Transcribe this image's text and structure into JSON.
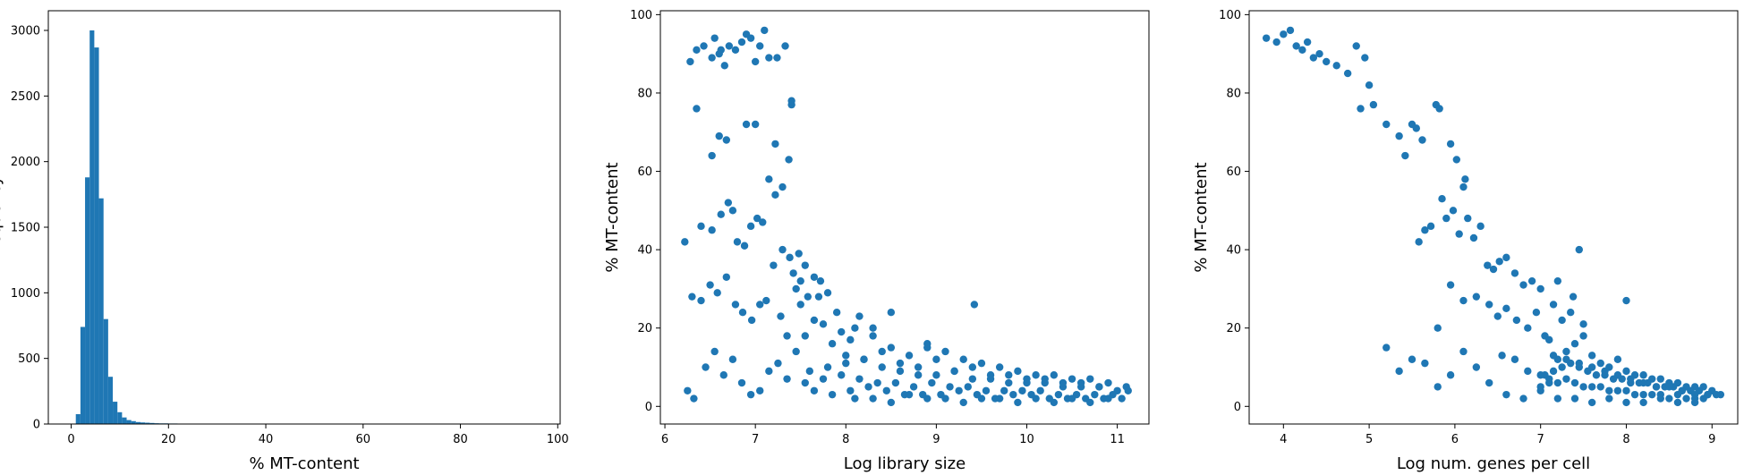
{
  "colors": {
    "series": "#1f77b4",
    "axis": "#000000",
    "background": "#ffffff"
  },
  "chart_data": [
    {
      "type": "bar",
      "subtype": "histogram",
      "xlabel": "% MT-content",
      "ylabel": "Frequency",
      "xlim": [
        -4.7,
        100.5
      ],
      "ylim": [
        0,
        3150
      ],
      "xticks": [
        0,
        20,
        40,
        60,
        80,
        100
      ],
      "yticks": [
        0,
        500,
        1000,
        1500,
        2000,
        2500,
        3000
      ],
      "bin_width": 0.95,
      "bin_start": 0.95,
      "values": [
        75,
        740,
        1880,
        3000,
        2870,
        1720,
        800,
        360,
        170,
        90,
        50,
        30,
        22,
        15,
        12,
        10,
        8,
        6,
        5,
        5,
        4,
        4,
        3,
        3,
        3,
        3,
        2,
        2,
        2,
        2,
        2,
        2,
        2,
        2,
        2,
        2,
        2,
        2,
        2,
        2,
        2,
        2,
        2,
        2,
        2,
        2,
        2,
        2,
        2,
        2,
        2,
        2,
        2,
        2,
        2,
        2,
        2,
        2,
        2,
        2,
        2,
        2,
        2,
        2,
        2,
        2,
        2,
        2,
        2,
        2,
        2,
        2,
        2,
        2,
        2,
        2,
        2,
        2,
        2,
        2,
        2,
        2,
        2,
        2,
        2,
        2,
        2,
        2,
        2,
        2,
        2,
        2,
        2,
        2,
        2,
        2,
        2,
        2,
        2,
        2
      ]
    },
    {
      "type": "scatter",
      "xlabel": "Log library size",
      "ylabel": "% MT-content",
      "xlim": [
        5.95,
        11.35
      ],
      "ylim": [
        -4.5,
        101
      ],
      "xticks": [
        6,
        7,
        8,
        9,
        10,
        11
      ],
      "yticks": [
        0,
        20,
        40,
        60,
        80,
        100
      ],
      "x": [
        6.28,
        6.35,
        6.43,
        6.52,
        6.55,
        6.6,
        6.62,
        6.66,
        6.71,
        6.78,
        6.85,
        6.9,
        6.95,
        7.0,
        7.05,
        7.1,
        7.15,
        7.24,
        7.33,
        7.4,
        6.35,
        6.52,
        6.6,
        6.68,
        6.9,
        7.0,
        7.22,
        7.37,
        7.4,
        6.22,
        6.4,
        6.52,
        6.62,
        6.7,
        6.75,
        6.8,
        6.88,
        6.95,
        7.02,
        7.08,
        7.15,
        7.22,
        7.3,
        7.38,
        7.42,
        7.48,
        7.55,
        6.3,
        6.4,
        6.5,
        6.58,
        6.68,
        6.78,
        6.86,
        6.96,
        7.05,
        7.12,
        7.2,
        7.28,
        7.35,
        7.45,
        7.5,
        7.58,
        7.65,
        7.72,
        7.8,
        6.25,
        6.32,
        6.45,
        6.55,
        6.65,
        6.75,
        6.85,
        6.95,
        7.05,
        7.15,
        7.25,
        7.35,
        7.45,
        7.55,
        7.65,
        7.75,
        7.85,
        7.95,
        8.05,
        8.15,
        8.3,
        8.5,
        8.9,
        9.42,
        7.3,
        7.5,
        7.7,
        7.9,
        8.1,
        8.3,
        8.5,
        8.7,
        8.9,
        9.1,
        9.3,
        9.5,
        9.7,
        9.9,
        10.1,
        10.3,
        10.5,
        10.7,
        10.9,
        11.1,
        7.6,
        7.8,
        8.0,
        8.2,
        8.4,
        8.6,
        8.8,
        9.0,
        9.2,
        9.4,
        9.6,
        9.8,
        10.0,
        10.2,
        10.4,
        10.6,
        10.8,
        11.0,
        11.12,
        7.55,
        7.75,
        7.95,
        8.15,
        8.35,
        8.55,
        8.75,
        8.95,
        9.15,
        9.35,
        9.55,
        9.75,
        9.95,
        10.15,
        10.35,
        10.55,
        10.75,
        10.95,
        7.65,
        7.85,
        8.05,
        8.25,
        8.45,
        8.65,
        8.85,
        9.05,
        9.25,
        9.45,
        9.65,
        9.85,
        10.05,
        10.25,
        10.45,
        10.65,
        10.85,
        11.05,
        8.0,
        8.2,
        8.4,
        8.6,
        8.8,
        9.0,
        9.2,
        9.4,
        9.6,
        9.8,
        10.0,
        10.2,
        10.4,
        10.6,
        10.8,
        8.1,
        8.3,
        8.5,
        8.7,
        8.9,
        9.1,
        9.3,
        9.5,
        9.7,
        9.9,
        10.1,
        10.3,
        10.5,
        10.7,
        10.9
      ],
      "y": [
        88,
        91,
        92,
        89,
        94,
        90,
        91,
        87,
        92,
        91,
        93,
        95,
        94,
        88,
        92,
        96,
        89,
        89,
        92,
        77,
        76,
        64,
        69,
        68,
        72,
        72,
        67,
        63,
        78,
        42,
        46,
        45,
        49,
        52,
        50,
        42,
        41,
        46,
        48,
        47,
        58,
        54,
        56,
        38,
        34,
        39,
        36,
        28,
        27,
        31,
        29,
        33,
        26,
        24,
        22,
        26,
        27,
        36,
        23,
        18,
        30,
        26,
        28,
        33,
        32,
        29,
        4,
        2,
        10,
        14,
        8,
        12,
        6,
        3,
        4,
        9,
        11,
        7,
        14,
        18,
        22,
        21,
        16,
        19,
        17,
        23,
        20,
        24,
        15,
        26,
        40,
        32,
        28,
        24,
        20,
        18,
        15,
        13,
        16,
        14,
        12,
        11,
        10,
        9,
        8,
        8,
        7,
        7,
        6,
        5,
        9,
        10,
        11,
        12,
        10,
        9,
        8,
        8,
        9,
        7,
        7,
        6,
        6,
        6,
        5,
        5,
        5,
        4,
        4,
        6,
        7,
        8,
        7,
        6,
        6,
        5,
        6,
        5,
        5,
        4,
        4,
        4,
        4,
        3,
        3,
        3,
        3,
        4,
        3,
        4,
        5,
        4,
        3,
        3,
        3,
        4,
        3,
        2,
        3,
        3,
        2,
        2,
        2,
        2,
        2,
        13,
        12,
        14,
        11,
        10,
        12,
        9,
        10,
        8,
        8,
        7,
        7,
        6,
        6,
        5,
        2,
        2,
        1,
        3,
        2,
        2,
        1,
        2,
        2,
        1,
        2,
        1,
        2,
        1,
        2
      ]
    },
    {
      "type": "scatter",
      "xlabel": "Log num. genes per cell",
      "ylabel": "% MT-content",
      "xlim": [
        3.6,
        9.3
      ],
      "ylim": [
        -4.5,
        101
      ],
      "xticks": [
        4,
        5,
        6,
        7,
        8,
        9
      ],
      "yticks": [
        0,
        20,
        40,
        60,
        80,
        100
      ],
      "x": [
        3.8,
        3.92,
        4.0,
        4.08,
        4.15,
        4.22,
        4.28,
        4.35,
        4.42,
        4.5,
        4.62,
        4.75,
        4.85,
        4.95,
        5.0,
        4.9,
        5.05,
        5.2,
        5.35,
        5.42,
        5.5,
        5.55,
        5.62,
        5.78,
        5.82,
        5.95,
        6.02,
        6.1,
        6.12,
        5.58,
        5.65,
        5.72,
        5.85,
        5.9,
        5.98,
        6.05,
        6.15,
        6.22,
        6.3,
        6.38,
        6.45,
        6.52,
        6.6,
        6.7,
        6.8,
        6.9,
        7.0,
        7.2,
        7.38,
        7.45,
        5.8,
        5.95,
        6.1,
        6.25,
        6.4,
        6.5,
        6.6,
        6.72,
        6.85,
        6.95,
        7.05,
        7.15,
        7.25,
        7.35,
        7.5,
        8.0,
        5.2,
        5.35,
        5.5,
        5.65,
        5.8,
        5.95,
        6.1,
        6.25,
        6.4,
        6.55,
        6.7,
        6.85,
        7.0,
        7.1,
        6.6,
        6.8,
        7.0,
        7.1,
        7.2,
        7.3,
        7.4,
        7.5,
        7.6,
        7.7,
        7.8,
        7.9,
        8.0,
        8.1,
        8.2,
        8.3,
        8.4,
        8.5,
        8.6,
        8.7,
        8.8,
        8.9,
        9.0,
        9.1,
        7.05,
        7.15,
        7.25,
        7.35,
        7.45,
        7.55,
        7.65,
        7.75,
        7.85,
        7.95,
        8.05,
        8.15,
        8.25,
        8.35,
        8.45,
        8.55,
        8.65,
        8.75,
        8.85,
        8.95,
        9.05,
        7.0,
        7.1,
        7.2,
        7.3,
        7.4,
        7.5,
        7.6,
        7.7,
        7.8,
        7.9,
        8.0,
        8.1,
        8.2,
        8.3,
        8.4,
        8.5,
        8.6,
        8.7,
        8.8,
        8.9,
        7.15,
        7.3,
        7.45,
        7.6,
        7.75,
        7.9,
        8.05,
        8.2,
        8.35,
        8.5,
        8.65,
        8.8,
        8.95,
        7.2,
        7.4,
        7.6,
        7.8,
        8.0,
        8.2,
        8.4,
        8.6,
        8.8
      ],
      "y": [
        94,
        93,
        95,
        96,
        92,
        91,
        93,
        89,
        90,
        88,
        87,
        85,
        92,
        89,
        82,
        76,
        77,
        72,
        69,
        64,
        72,
        71,
        68,
        77,
        76,
        67,
        63,
        56,
        58,
        42,
        45,
        46,
        53,
        48,
        50,
        44,
        48,
        43,
        46,
        36,
        35,
        37,
        38,
        34,
        31,
        32,
        30,
        32,
        28,
        40,
        20,
        31,
        27,
        28,
        26,
        23,
        25,
        22,
        20,
        24,
        18,
        26,
        22,
        24,
        21,
        27,
        15,
        9,
        12,
        11,
        5,
        8,
        14,
        10,
        6,
        13,
        12,
        9,
        8,
        17,
        3,
        2,
        4,
        7,
        12,
        14,
        16,
        18,
        13,
        11,
        10,
        12,
        9,
        8,
        8,
        7,
        7,
        6,
        6,
        5,
        5,
        5,
        4,
        3,
        8,
        9,
        10,
        11,
        10,
        9,
        8,
        8,
        7,
        7,
        6,
        6,
        6,
        5,
        5,
        5,
        4,
        4,
        4,
        3,
        3,
        5,
        6,
        6,
        7,
        6,
        5,
        5,
        5,
        4,
        4,
        4,
        3,
        3,
        3,
        3,
        2,
        3,
        2,
        2,
        2,
        13,
        12,
        11,
        10,
        9,
        8,
        7,
        6,
        5,
        5,
        4,
        3,
        3,
        2,
        2,
        1,
        2,
        1,
        1,
        2,
        1,
        1
      ]
    }
  ]
}
